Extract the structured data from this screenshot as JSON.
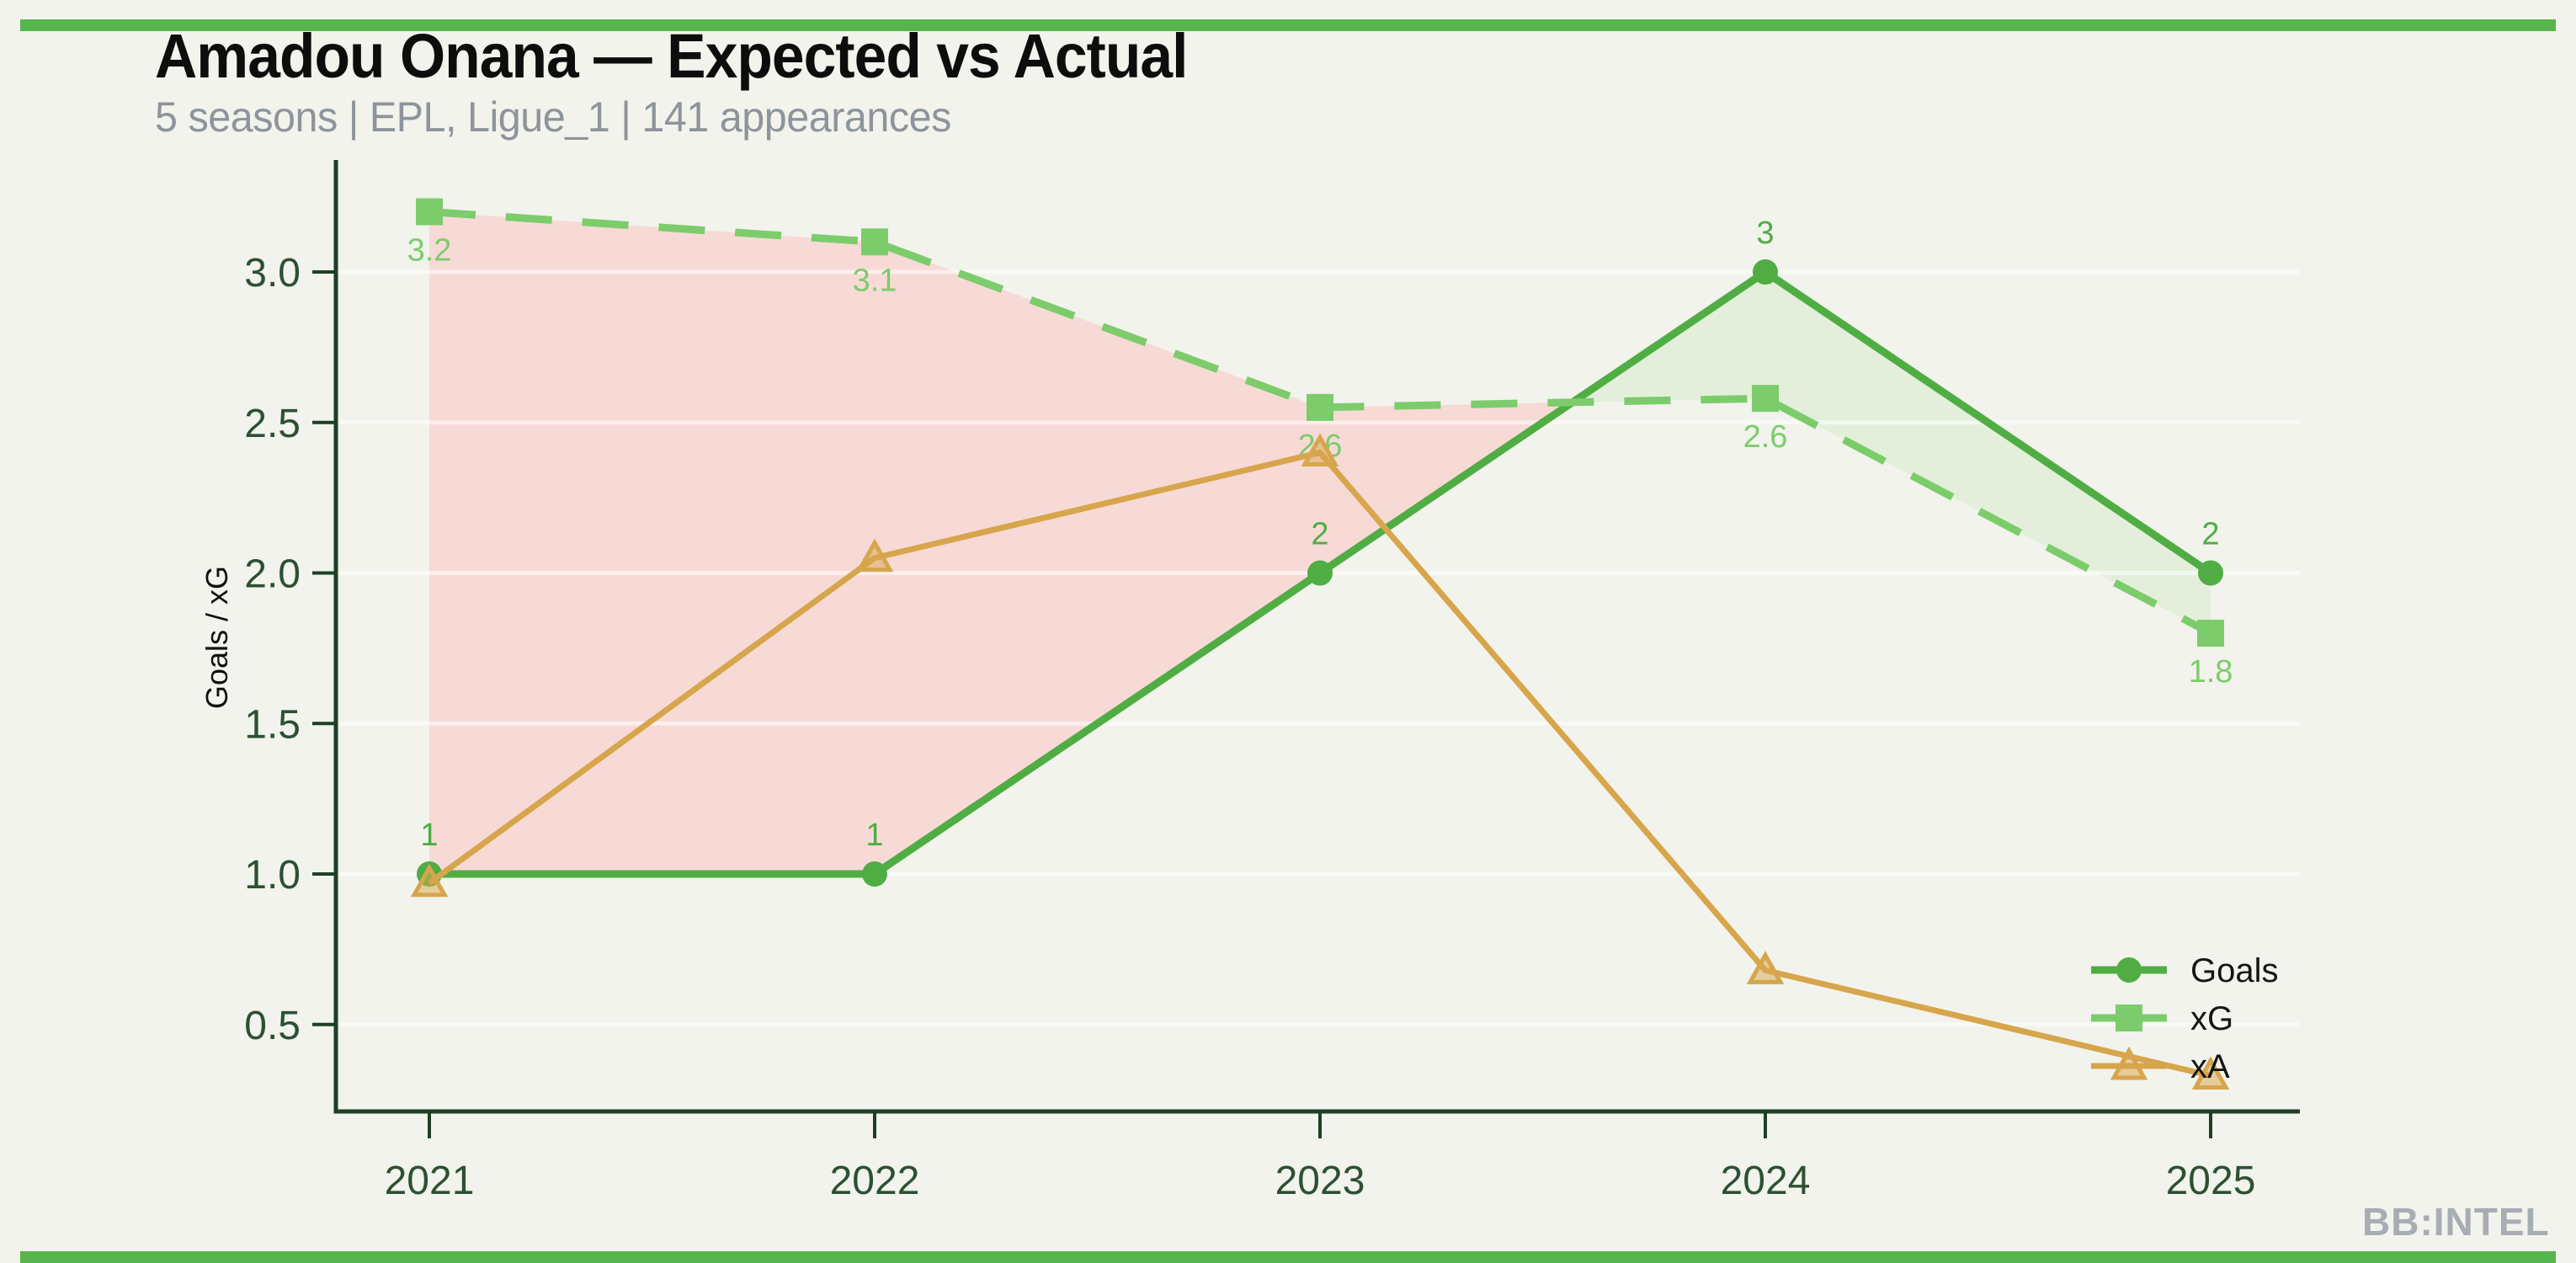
{
  "page": {
    "title": "Amadou Onana — Expected vs Actual",
    "subtitle": "5 seasons | EPL, Ligue_1 | 141 appearances",
    "watermark": "BB:INTEL",
    "background_color": "#f2f3ec",
    "accent_bar_color": "#57b54d"
  },
  "chart_data": {
    "type": "line",
    "title": "Amadou Onana — Expected vs Actual",
    "subtitle": "5 seasons | EPL, Ligue_1 | 141 appearances",
    "xlabel": "",
    "ylabel": "Goals / xG",
    "categories": [
      "2021",
      "2022",
      "2023",
      "2024",
      "2025"
    ],
    "yticks": [
      "0.5",
      "1.0",
      "1.5",
      "2.0",
      "2.5",
      "3.0"
    ],
    "ylim": [
      0.2,
      3.38
    ],
    "grid": "faint horizontal white lines at each y tick",
    "axis_color": "#1d4024",
    "tick_label_color": "#2c5132",
    "series": [
      {
        "name": "Goals",
        "values": [
          1,
          1,
          2,
          3,
          2
        ],
        "point_labels": [
          "1",
          "1",
          "2",
          "3",
          "2"
        ],
        "label_position": "above",
        "color": "#4fad44",
        "marker": "circle",
        "line_style": "solid"
      },
      {
        "name": "xG",
        "values": [
          3.2,
          3.1,
          2.55,
          2.58,
          1.8
        ],
        "point_labels": [
          "3.2",
          "3.1",
          "2.6",
          "2.6",
          "1.8"
        ],
        "label_position": "below",
        "color": "#7ccc6c",
        "marker": "square",
        "line_style": "dashed"
      },
      {
        "name": "xA",
        "values": [
          0.97,
          2.05,
          2.4,
          0.68,
          0.33
        ],
        "point_labels": [],
        "label_position": "none",
        "color": "#d7a54c",
        "marker": "triangle",
        "line_style": "solid"
      }
    ],
    "fills": [
      {
        "meaning": "underperformance (xG above Goals)",
        "color": "#f7dad6"
      },
      {
        "meaning": "overperformance (Goals above xG)",
        "color": "#e3efdb"
      }
    ],
    "legend": {
      "position": "lower right",
      "items": [
        "Goals",
        "xG",
        "xA"
      ]
    }
  }
}
